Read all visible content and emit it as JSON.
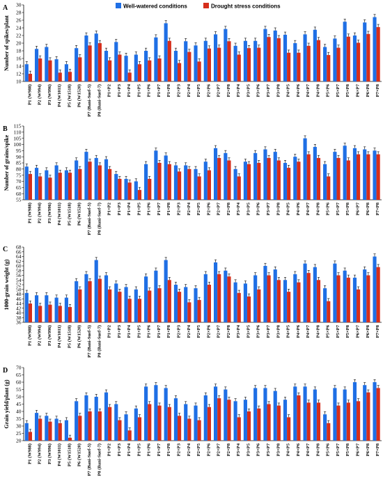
{
  "legend": {
    "well_watered": "Well-watered conditions",
    "drought": "Drought stress conditions",
    "colors": {
      "well_watered": "#1F6FE5",
      "drought": "#D62E1B"
    }
  },
  "chart_data": [
    {
      "type": "bar",
      "panel": "A",
      "ylabel": "Number of spikes/plant",
      "ylim": [
        10,
        30
      ],
      "yticks": [
        10,
        12,
        14,
        16,
        18,
        20,
        22,
        24,
        26,
        28,
        30
      ],
      "categories": [
        "P1 (W988)",
        "P2 (W994)",
        "P3 (W996)",
        "P4 (W1011)",
        "P5 (W1518)",
        "P6 (W1520)",
        "P7 (Bani-Suef-5)",
        "P8 (Bani-Suef-7)",
        "P1×P2",
        "P1×P3",
        "P1×P4",
        "P1×P5",
        "P1×P6",
        "P1×P7",
        "P1×P8",
        "P2×P3",
        "P2×P4",
        "P2×P5",
        "P2×P6",
        "P2×P7",
        "P2×P8",
        "P3×P4",
        "P3×P5",
        "P3×P6",
        "P3×P7",
        "P3×P8",
        "P4×P5",
        "P4×P6",
        "P4×P7",
        "P4×P8",
        "P5×P6",
        "P5×P7",
        "P5×P8",
        "P6×P7",
        "P6×P8",
        "P7×P8"
      ],
      "series": [
        {
          "name": "Well-watered conditions",
          "values": [
            14.5,
            18.5,
            19,
            15.8,
            14.5,
            18.7,
            22,
            22.5,
            18,
            20.3,
            16.7,
            17,
            18,
            21.5,
            25.2,
            18,
            20.5,
            19.4,
            20.6,
            22.3,
            23.7,
            19.3,
            20.6,
            20.6,
            23.7,
            23.3,
            22.2,
            20,
            22.3,
            23.5,
            19,
            21.2,
            25.6,
            22,
            25.4,
            26.8
          ]
        },
        {
          "name": "Drought stress conditions",
          "values": [
            12,
            16,
            15.5,
            12.3,
            12.5,
            16.3,
            19.4,
            20,
            15.5,
            17,
            12.3,
            14.5,
            15.5,
            16,
            20.6,
            14.8,
            17.7,
            15.2,
            18.6,
            18.8,
            20.5,
            17,
            18.7,
            18.8,
            21.6,
            21.3,
            17.5,
            17.5,
            19.3,
            20.8,
            16.9,
            18.8,
            21.7,
            20.1,
            22.4,
            24.2
          ]
        }
      ]
    },
    {
      "type": "bar",
      "panel": "B",
      "ylabel": "Number of grains/spike",
      "ylim": [
        55,
        115
      ],
      "yticks": [
        55,
        60,
        65,
        70,
        75,
        80,
        85,
        90,
        95,
        100,
        105,
        110,
        115
      ],
      "categories": [
        "P1 (W988)",
        "P2 (W994)",
        "P3 (W996)",
        "P4 (W1011)",
        "P5 (W1518)",
        "P6 (W1520)",
        "P7 (Bani-Suef-5)",
        "P8 (Bani-Suef-7)",
        "P1×P2",
        "P1×P3",
        "P1×P4",
        "P1×P5",
        "P1×P6",
        "P1×P7",
        "P1×P8",
        "P2×P3",
        "P2×P4",
        "P2×P5",
        "P2×P6",
        "P2×P7",
        "P2×P8",
        "P3×P4",
        "P3×P5",
        "P3×P6",
        "P3×P7",
        "P3×P8",
        "P4×P5",
        "P4×P6",
        "P4×P7",
        "P4×P8",
        "P5×P6",
        "P5×P7",
        "P5×P8",
        "P6×P7",
        "P6×P8",
        "P7×P8"
      ],
      "series": [
        {
          "name": "Well-watered conditions",
          "values": [
            82,
            81,
            79,
            83,
            79,
            87,
            94,
            89,
            88,
            76,
            72,
            70,
            84,
            95,
            91,
            83,
            83,
            80,
            86,
            97,
            93,
            80,
            86,
            93,
            96,
            94,
            85,
            90,
            105,
            98,
            84,
            94,
            99,
            97,
            96,
            95
          ]
        },
        {
          "name": "Drought stress conditions",
          "values": [
            76,
            74,
            73,
            77,
            77,
            80,
            86,
            83,
            80,
            72,
            69,
            63,
            72,
            85,
            84,
            78,
            80,
            74,
            79,
            89,
            87,
            74,
            84,
            85,
            89,
            87,
            81,
            86,
            92,
            89,
            74,
            89,
            87,
            92,
            92,
            92
          ]
        }
      ]
    },
    {
      "type": "bar",
      "panel": "C",
      "ylabel": "1000-grain weight (g)",
      "ylim": [
        36,
        68
      ],
      "yticks": [
        36,
        38,
        40,
        42,
        44,
        46,
        48,
        50,
        52,
        54,
        56,
        58,
        60,
        62,
        64,
        66,
        68
      ],
      "categories": [
        "P1 (W988)",
        "P2 (W994)",
        "P3 (W996)",
        "P4 (W1011)",
        "P5 (W1518)",
        "P6 (W1520)",
        "P7 (Bani-Suef-5)",
        "P8 (Bani-Suef-7)",
        "P1×P2",
        "P1×P3",
        "P1×P4",
        "P1×P5",
        "P1×P6",
        "P1×P7",
        "P1×P8",
        "P2×P3",
        "P2×P4",
        "P2×P5",
        "P2×P6",
        "P2×P7",
        "P2×P8",
        "P3×P4",
        "P3×P5",
        "P3×P6",
        "P3×P7",
        "P3×P8",
        "P4×P5",
        "P4×P6",
        "P4×P7",
        "P4×P8",
        "P5×P6",
        "P5×P7",
        "P5×P8",
        "P6×P7",
        "P6×P8",
        "P7×P8"
      ],
      "series": [
        {
          "name": "Well-watered conditions",
          "values": [
            48.5,
            47.5,
            47.5,
            46.5,
            46.5,
            53.5,
            56.5,
            62.5,
            56,
            52.5,
            51,
            50,
            55.5,
            58,
            62.5,
            52,
            51,
            50.5,
            56.5,
            61.5,
            58,
            53,
            52.5,
            56,
            60,
            58.5,
            54,
            56.5,
            61,
            59.5,
            50.5,
            61,
            58,
            55,
            58.5,
            64
          ]
        },
        {
          "name": "Drought stress conditions",
          "values": [
            44,
            43,
            43.5,
            43,
            42.5,
            50,
            53.5,
            54.5,
            50,
            49,
            46,
            46,
            49.5,
            50.5,
            54,
            49,
            44.5,
            45.5,
            52,
            56.5,
            55.5,
            48.5,
            47,
            50,
            56,
            54,
            49,
            53,
            57,
            54,
            45,
            56,
            55,
            50,
            56,
            59.5
          ]
        }
      ]
    },
    {
      "type": "bar",
      "panel": "D",
      "ylabel": "Grain yield/plant (g)",
      "ylim": [
        20,
        70
      ],
      "yticks": [
        20,
        25,
        30,
        35,
        40,
        45,
        50,
        55,
        60,
        65,
        70
      ],
      "categories": [
        "P1 (W988)",
        "P2 (W994)",
        "P3 (W996)",
        "P4 (W1011)",
        "P5 (W1518)",
        "P6 (W1520)",
        "P7 (Bani-Suef-5)",
        "P8 (Bani-Suef-7)",
        "P1×P2",
        "P1×P3",
        "P1×P4",
        "P1×P5",
        "P1×P6",
        "P1×P7",
        "P1×P8",
        "P2×P3",
        "P2×P4",
        "P2×P5",
        "P2×P6",
        "P2×P7",
        "P2×P8",
        "P3×P4",
        "P3×P5",
        "P3×P6",
        "P3×P7",
        "P3×P8",
        "P4×P5",
        "P4×P6",
        "P4×P7",
        "P4×P8",
        "P5×P6",
        "P5×P7",
        "P5×P8",
        "P6×P7",
        "P6×P8",
        "P7×P8"
      ],
      "series": [
        {
          "name": "Well-watered conditions",
          "values": [
            32,
            39,
            37,
            35,
            34,
            47,
            51,
            50,
            53,
            45,
            38,
            42,
            57,
            58,
            56,
            49,
            45,
            44,
            51,
            57,
            55,
            47,
            48,
            56,
            56,
            54,
            48,
            57,
            57,
            55,
            38,
            56,
            55,
            60,
            58,
            60
          ]
        },
        {
          "name": "Drought stress conditions",
          "values": [
            26,
            35,
            33,
            32,
            22,
            37,
            40,
            40,
            43,
            34,
            27,
            36,
            45,
            44,
            43,
            37,
            35,
            34,
            43,
            49,
            48,
            36,
            40,
            42,
            45,
            44,
            36,
            51,
            46,
            46,
            32,
            44,
            46,
            47,
            53,
            56
          ]
        }
      ]
    }
  ]
}
